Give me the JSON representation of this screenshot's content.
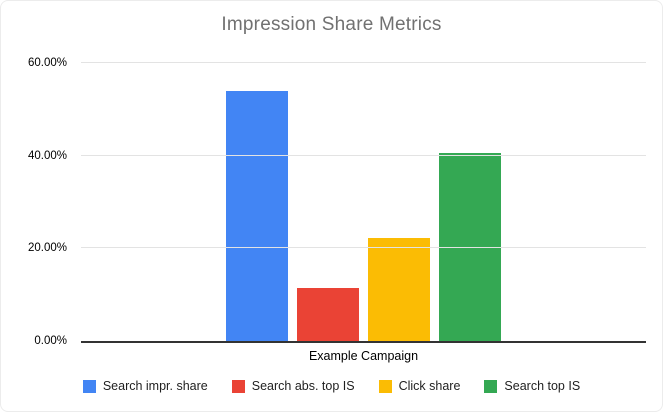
{
  "chart_data": {
    "type": "bar",
    "title": "Impression Share Metrics",
    "categories": [
      "Example Campaign"
    ],
    "series": [
      {
        "name": "Search impr. share",
        "color": "#4285F4",
        "values": [
          54.0
        ]
      },
      {
        "name": "Search abs. top IS",
        "color": "#EA4335",
        "values": [
          11.5
        ]
      },
      {
        "name": "Click share",
        "color": "#FBBC04",
        "values": [
          22.2
        ]
      },
      {
        "name": "Search top IS",
        "color": "#34A853",
        "values": [
          40.5
        ]
      }
    ],
    "xlabel": "",
    "ylabel": "",
    "ylim": [
      0,
      60
    ],
    "yticks": [
      "0.00%",
      "20.00%",
      "40.00%",
      "60.00%"
    ],
    "ytick_values": [
      0,
      20,
      40,
      60
    ],
    "grid": true,
    "legend_position": "bottom"
  }
}
